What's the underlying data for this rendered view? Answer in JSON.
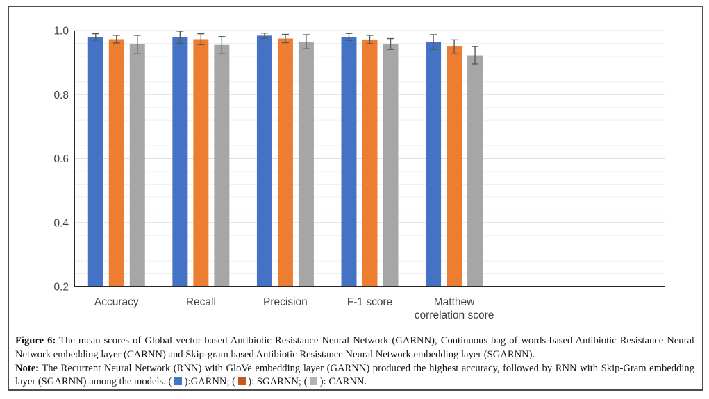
{
  "caption": {
    "figure_label": "Figure 6:",
    "figure_text": " The mean scores of Global vector-based Antibiotic Resistance Neural Network (GARNN), Continuous bag of words-based Antibiotic Resistance Neural Network embedding layer (CARNN) and Skip-gram based Antibiotic Resistance Neural Network embedding layer (SGARNN).",
    "note_label": "Note:",
    "note_text": " The Recurrent Neural Network (RNN) with GloVe embedding layer (GARNN) produced the highest accuracy, followed by RNN with Skip-Gram embedding layer (SGARNN) among the models.",
    "legend": [
      {
        "color": "#3D7ABF",
        "suffix": ":GARNN;"
      },
      {
        "color": "#C05A21",
        "suffix": ": SGARNN;"
      },
      {
        "color": "#B3B3B3",
        "suffix": ": CARNN."
      }
    ]
  },
  "chart_data": {
    "type": "bar",
    "title": "",
    "xlabel": "",
    "ylabel": "",
    "categories": [
      "Accuracy",
      "Recall",
      "Precision",
      "F-1 score",
      "Matthew\ncorrelation score"
    ],
    "series": [
      {
        "name": "GARNN",
        "color": "#4472C4",
        "values": [
          0.98,
          0.979,
          0.984,
          0.98,
          0.964
        ],
        "errors": [
          0.01,
          0.019,
          0.008,
          0.011,
          0.023
        ]
      },
      {
        "name": "SGARNN",
        "color": "#ED7D31",
        "values": [
          0.973,
          0.973,
          0.975,
          0.972,
          0.95
        ],
        "errors": [
          0.012,
          0.017,
          0.013,
          0.013,
          0.021
        ]
      },
      {
        "name": "CARNN",
        "color": "#A6A6A6",
        "values": [
          0.957,
          0.955,
          0.965,
          0.958,
          0.923
        ],
        "errors": [
          0.028,
          0.026,
          0.022,
          0.017,
          0.027
        ]
      }
    ],
    "ylim": [
      0.2,
      1.0
    ],
    "yticks": [
      0.2,
      0.4,
      0.6,
      0.8,
      1.0
    ],
    "ytick_labels": [
      "0.2",
      "0.4",
      "0.6",
      "0.8",
      "1.0"
    ],
    "minor_grid_step": 0.04,
    "grid": true,
    "legend_position": "in-caption",
    "axis_color": "#262626",
    "error_bar_color": "#595959",
    "tick_label_color": "#404040",
    "major_grid_color": "#E4DDDC",
    "minor_grid_color": "#F3EEEE"
  }
}
